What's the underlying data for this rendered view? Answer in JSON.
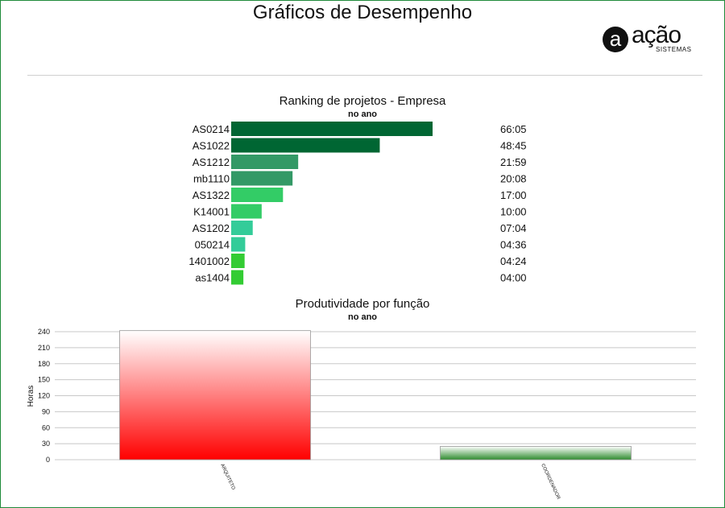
{
  "page": {
    "title": "Gráficos de Desempenho"
  },
  "logo": {
    "letter": "a",
    "word": "ação",
    "sub": "SISTEMAS"
  },
  "chart_data": [
    {
      "type": "bar",
      "orientation": "horizontal",
      "title": "Ranking de projetos - Empresa",
      "subtitle": "no ano",
      "categories": [
        "AS0214",
        "AS1022",
        "AS1212",
        "mb1110",
        "AS1322",
        "K14001",
        "AS1202",
        "050214",
        "1401002",
        "as1404"
      ],
      "values": [
        66.083,
        48.75,
        21.983,
        20.133,
        17.0,
        10.0,
        7.067,
        4.6,
        4.4,
        4.0
      ],
      "value_labels": [
        "66:05",
        "48:45",
        "21:59",
        "20:08",
        "17:00",
        "10:00",
        "07:04",
        "04:36",
        "04:24",
        "04:00"
      ],
      "colors": [
        "#006633",
        "#006633",
        "#339966",
        "#339966",
        "#33cc66",
        "#33cc66",
        "#33cc99",
        "#33cc99",
        "#33cc33",
        "#33cc33"
      ],
      "xlim": [
        0,
        66.083
      ]
    },
    {
      "type": "bar",
      "title": "Produtividade por função",
      "subtitle": "no ano",
      "ylabel": "Horas",
      "categories": [
        "ARQUITETO",
        "COORDENADOR"
      ],
      "values": [
        242,
        25
      ],
      "yticks": [
        0,
        30,
        60,
        90,
        120,
        150,
        180,
        210,
        240
      ],
      "ylim": [
        0,
        240
      ],
      "grid": true,
      "colors": [
        "#ff0000",
        "#2e8b2e"
      ]
    }
  ]
}
